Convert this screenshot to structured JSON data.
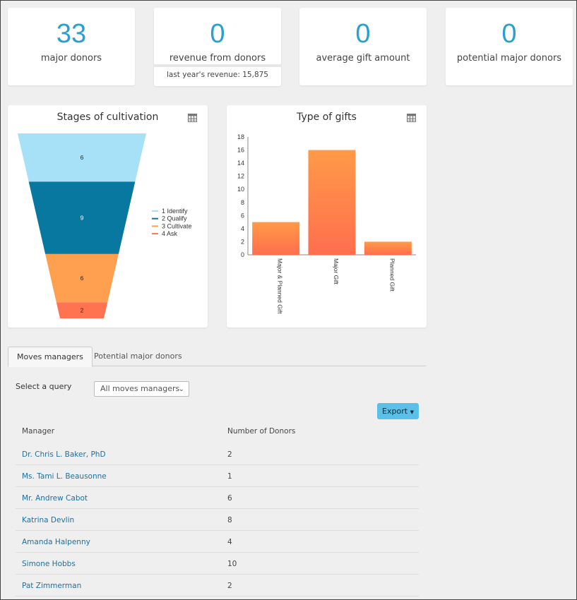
{
  "stats": [
    {
      "value": "33",
      "label": "major donors"
    },
    {
      "value": "0",
      "label": "revenue from donors",
      "sub": "last year's revenue: 15,875"
    },
    {
      "value": "0",
      "label": "average gift amount"
    },
    {
      "value": "0",
      "label": "potential major donors"
    }
  ],
  "funnel": {
    "title": "Stages of cultivation",
    "stages": [
      {
        "label": "1 Identify",
        "value": 6,
        "color": "#a7e1f8"
      },
      {
        "label": "2 Qualify",
        "value": 9,
        "color": "#0878a0"
      },
      {
        "label": "3 Cultivate",
        "value": 6,
        "color": "#ff9f50"
      },
      {
        "label": "4 Ask",
        "value": 2,
        "color": "#ff7350"
      }
    ]
  },
  "chart_data": {
    "type": "bar",
    "title": "Type of gifts",
    "categories": [
      "Major & Planned Gift",
      "Major Gift",
      "Planned Gift"
    ],
    "values": [
      5,
      16,
      2
    ],
    "ylim": [
      0,
      18
    ],
    "yticks": [
      0,
      2,
      4,
      6,
      8,
      10,
      12,
      14,
      16,
      18
    ],
    "xlabel": "",
    "ylabel": ""
  },
  "tabs": {
    "active": "Moves managers",
    "other": "Potential major donors"
  },
  "query": {
    "label": "Select a query",
    "selected": "All moves managers"
  },
  "export_label": "Export",
  "table": {
    "headers": [
      "Manager",
      "Number of Donors"
    ],
    "rows": [
      {
        "manager": "Dr. Chris L. Baker, PhD",
        "donors": "2"
      },
      {
        "manager": "Ms. Tami L. Beausonne",
        "donors": "1"
      },
      {
        "manager": "Mr. Andrew Cabot",
        "donors": "6"
      },
      {
        "manager": "Katrina Devlin",
        "donors": "8"
      },
      {
        "manager": "Amanda Halpenny",
        "donors": "4"
      },
      {
        "manager": "Simone Hobbs",
        "donors": "10"
      },
      {
        "manager": "Pat Zimmerman",
        "donors": "2"
      }
    ]
  }
}
